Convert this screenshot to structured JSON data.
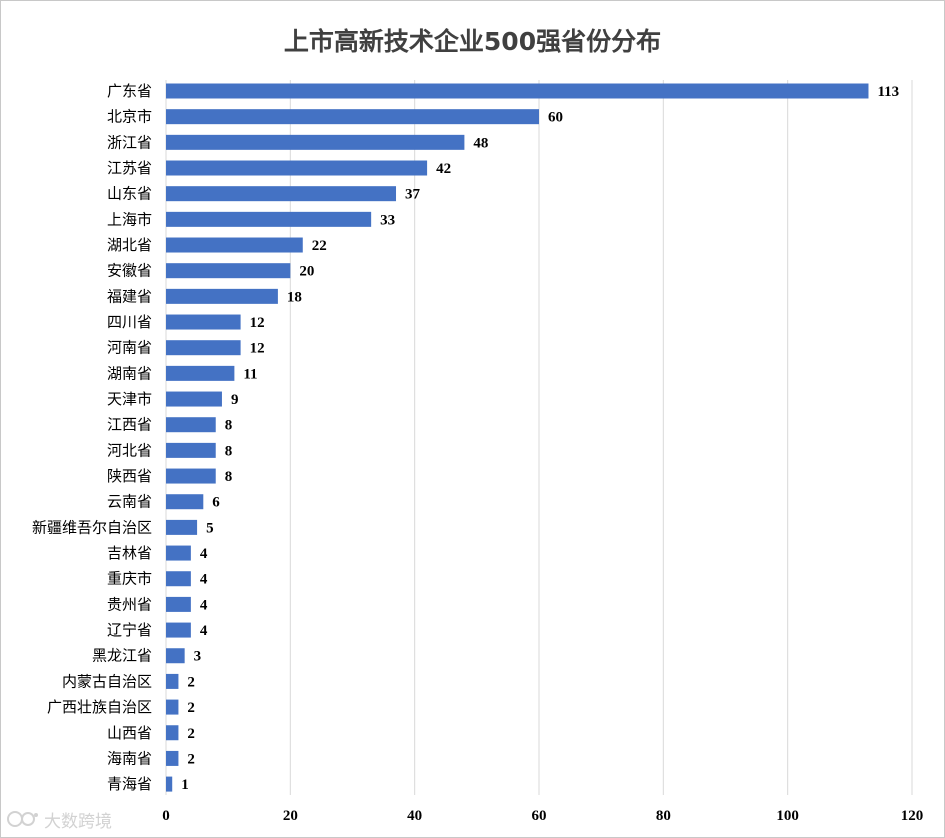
{
  "chart_data": {
    "type": "bar",
    "orientation": "horizontal",
    "title": "上市高新技术企业500强省份分布",
    "categories": [
      "广东省",
      "北京市",
      "浙江省",
      "江苏省",
      "山东省",
      "上海市",
      "湖北省",
      "安徽省",
      "福建省",
      "四川省",
      "河南省",
      "湖南省",
      "天津市",
      "江西省",
      "河北省",
      "陕西省",
      "云南省",
      "新疆维吾尔自治区",
      "吉林省",
      "重庆市",
      "贵州省",
      "辽宁省",
      "黑龙江省",
      "内蒙古自治区",
      "广西壮族自治区",
      "山西省",
      "海南省",
      "青海省"
    ],
    "values": [
      113,
      60,
      48,
      42,
      37,
      33,
      22,
      20,
      18,
      12,
      12,
      11,
      9,
      8,
      8,
      8,
      6,
      5,
      4,
      4,
      4,
      4,
      3,
      2,
      2,
      2,
      2,
      1
    ],
    "xlim": [
      0,
      120
    ],
    "xticks": [
      0,
      20,
      40,
      60,
      80,
      100,
      120
    ],
    "grid": "vertical",
    "bar_color": "#4472c4",
    "data_labels": true
  },
  "watermark": {
    "text": "大数跨境",
    "icon": "logo-icon"
  }
}
